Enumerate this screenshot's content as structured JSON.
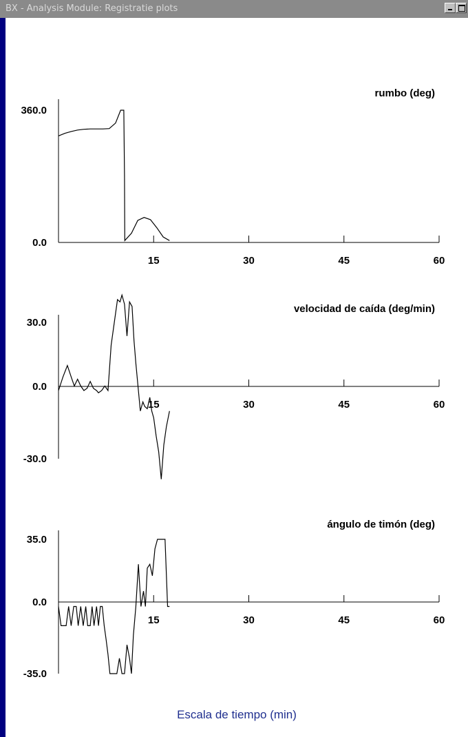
{
  "window": {
    "title": "BX - Analysis  Module: Registratie plots"
  },
  "colors": {
    "background": "#000080",
    "plot_background": "#ffffff",
    "line": "#000000",
    "caption": "#1f2f8f"
  },
  "caption": "Escala de tiempo (min)",
  "chart_data": [
    {
      "type": "line",
      "title": "rumbo (deg)",
      "y_tick_labels": [
        "360.0",
        "0.0"
      ],
      "x_tick_labels": [
        "15",
        "30",
        "45",
        "60"
      ],
      "xlim": [
        0,
        60
      ],
      "ylim": [
        0,
        360
      ],
      "series": [
        {
          "x": [
            0,
            1,
            2,
            3,
            4,
            5,
            6,
            7,
            8,
            9,
            9.8,
            10.3,
            10.4,
            10.45,
            10.6,
            11.5,
            12.5,
            13.5,
            14.5,
            15.5,
            16.5,
            17.5
          ],
          "y": [
            290,
            297,
            302,
            306,
            308,
            309,
            309,
            309,
            310,
            325,
            360,
            360,
            180,
            5,
            8,
            25,
            60,
            68,
            62,
            40,
            15,
            5
          ]
        }
      ]
    },
    {
      "type": "line",
      "title": "velocidad de caída (deg/min)",
      "y_tick_labels": [
        "30.0",
        "0.0",
        "-30.0"
      ],
      "x_tick_labels": [
        "15",
        "30",
        "45",
        "60"
      ],
      "xlim": [
        0,
        60
      ],
      "ylim": [
        -30,
        30
      ],
      "series": [
        {
          "x": [
            0,
            0.7,
            1.4,
            2,
            2.5,
            3,
            3.5,
            4,
            4.5,
            5,
            5.5,
            6,
            6.3,
            6.8,
            7.3,
            7.8,
            8.3,
            8.8,
            9.3,
            9.7,
            10,
            10.4,
            10.8,
            11.2,
            11.6,
            11.9,
            12.2,
            12.6,
            12.9,
            13.3,
            13.6,
            14,
            14.4,
            14.7,
            15,
            15.4,
            15.8,
            16.2,
            16.6,
            17,
            17.5
          ],
          "y": [
            0,
            6,
            11,
            6,
            2,
            5,
            2,
            0,
            1,
            4,
            1,
            0,
            -1,
            0,
            2,
            0,
            20,
            30,
            40,
            39,
            42,
            38,
            24,
            39,
            37,
            22,
            12,
            0,
            -9,
            -5,
            -7,
            -8,
            -3,
            -9,
            -12,
            -20,
            -27,
            -39,
            -24,
            -16,
            -9
          ]
        }
      ]
    },
    {
      "type": "line",
      "title": "ángulo de timón (deg)",
      "y_tick_labels": [
        "35.0",
        "0.0",
        "-35.0"
      ],
      "x_tick_labels": [
        "15",
        "30",
        "45",
        "60"
      ],
      "xlim": [
        0,
        60
      ],
      "ylim": [
        -35,
        35
      ],
      "series": [
        {
          "x": [
            0,
            0.4,
            1.2,
            1.6,
            2,
            2.4,
            2.8,
            3.1,
            3.5,
            3.9,
            4.3,
            4.6,
            5,
            5.3,
            5.6,
            6,
            6.3,
            6.6,
            6.9,
            7.2,
            7.5,
            7.8,
            8.1,
            8.4,
            8.8,
            9.2,
            9.6,
            10,
            10.4,
            10.8,
            11.2,
            11.5,
            11.8,
            12.2,
            12.6,
            13,
            13.4,
            13.7,
            14,
            14.4,
            14.8,
            15.2,
            15.6,
            16,
            16.4,
            16.8,
            17.2,
            17.5
          ],
          "y": [
            0,
            -10,
            -10,
            0,
            -10,
            0,
            0,
            -10,
            0,
            -10,
            0,
            -10,
            -10,
            0,
            -10,
            0,
            -10,
            0,
            0,
            -10,
            -17,
            -25,
            -35,
            -35,
            -35,
            -35,
            -27,
            -35,
            -35,
            -20,
            -27,
            -35,
            -15,
            0,
            22,
            0,
            8,
            0,
            20,
            22,
            16,
            30,
            35,
            35,
            35,
            35,
            0,
            0
          ]
        }
      ]
    }
  ]
}
